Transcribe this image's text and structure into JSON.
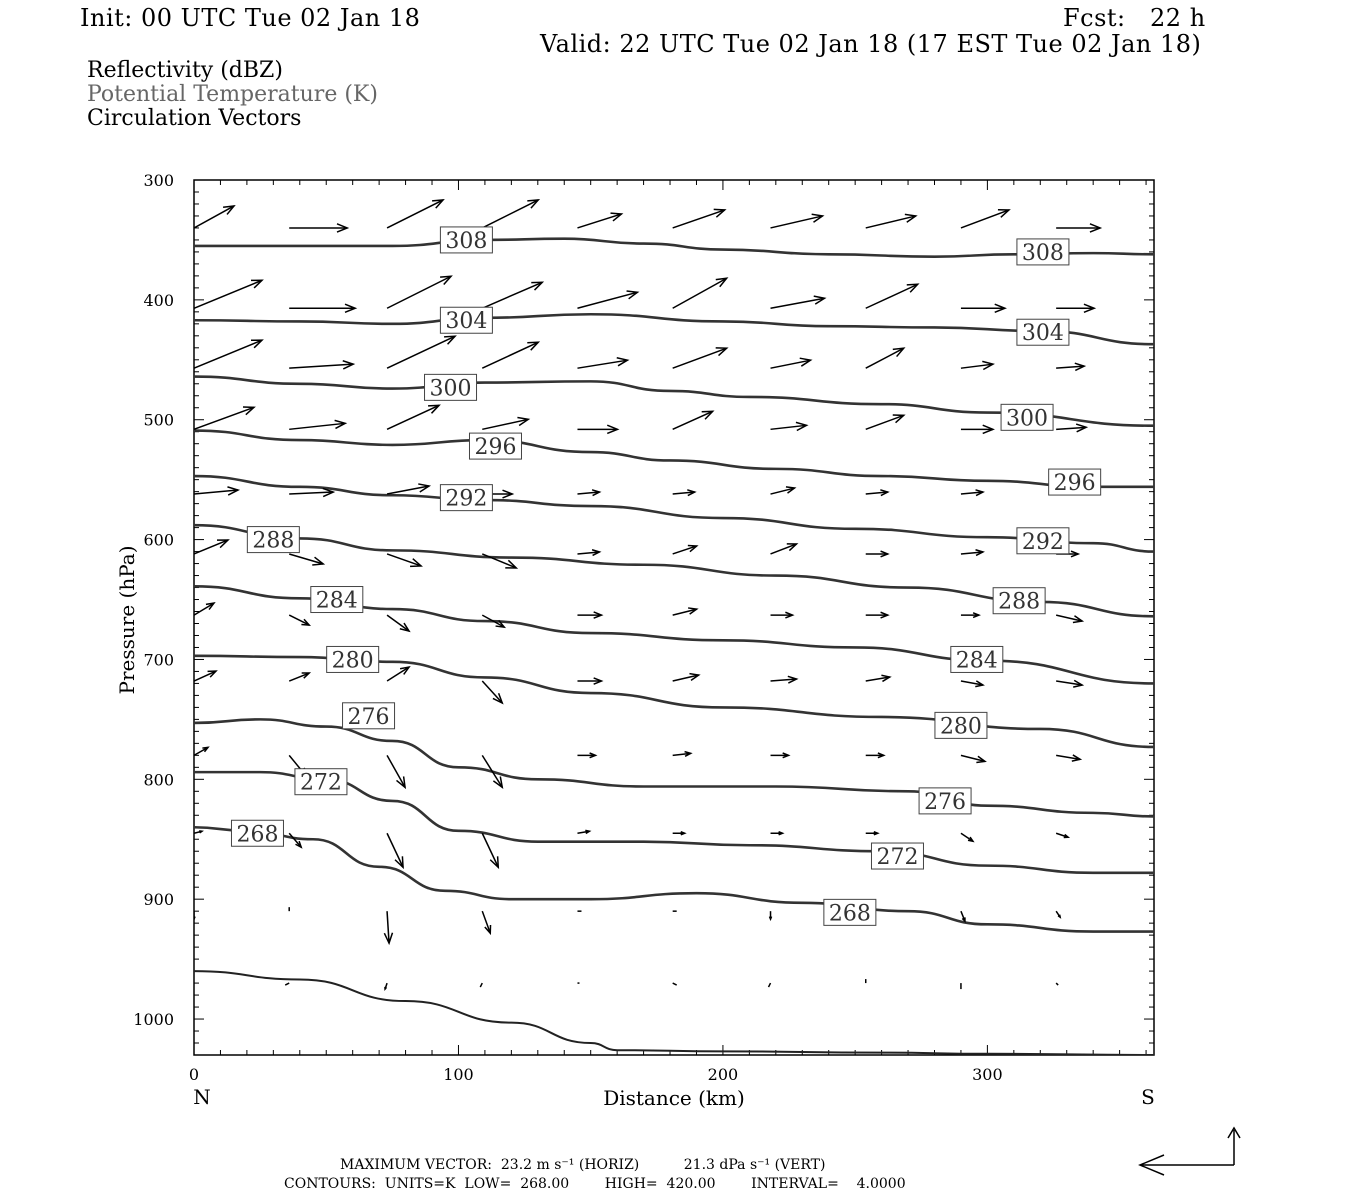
{
  "header": {
    "init": "Init: 00 UTC Tue 02 Jan 18",
    "fcst": "Fcst:   22 h",
    "valid": "Valid: 22 UTC Tue 02 Jan 18 (17 EST Tue 02 Jan 18)"
  },
  "legend": {
    "reflectivity": "Reflectivity (dBZ)",
    "theta": "Potential Temperature (K)",
    "vectors": "Circulation Vectors"
  },
  "footer": {
    "max_vector": "MAXIMUM VECTOR:  23.2 m s⁻¹ (HORIZ)          21.3 dPa s⁻¹ (VERT)",
    "contours": "CONTOURS:  UNITS=K  LOW=  268.00        HIGH=  420.00        INTERVAL=    4.0000"
  },
  "colors": {
    "contour": "#333333",
    "vector": "#000000",
    "label_border": "#444444"
  },
  "chart_data": {
    "type": "line",
    "title": "Potential Temperature (K)",
    "xlabel": "Distance (km)",
    "ylabel": "Pressure (hPa)",
    "xlim": [
      0,
      363
    ],
    "ylim": [
      1030,
      300
    ],
    "x_ticks": [
      "0",
      "100",
      "200",
      "300"
    ],
    "y_ticks": [
      "300",
      "400",
      "500",
      "600",
      "700",
      "800",
      "900",
      "1000"
    ],
    "x_end_labels": {
      "left": "N",
      "right": "S"
    },
    "isentropes": [
      {
        "theta": "308",
        "label_at": [
          [
            103,
            350
          ],
          [
            321,
            360
          ]
        ],
        "points": [
          [
            0,
            355
          ],
          [
            40,
            355
          ],
          [
            75,
            355
          ],
          [
            110,
            350
          ],
          [
            140,
            349
          ],
          [
            170,
            353
          ],
          [
            200,
            358
          ],
          [
            240,
            362
          ],
          [
            280,
            364
          ],
          [
            310,
            362
          ],
          [
            340,
            361
          ],
          [
            363,
            362
          ]
        ]
      },
      {
        "theta": "304",
        "label_at": [
          [
            103,
            417
          ],
          [
            321,
            427
          ]
        ],
        "points": [
          [
            0,
            417
          ],
          [
            40,
            418
          ],
          [
            75,
            420
          ],
          [
            110,
            415
          ],
          [
            150,
            412
          ],
          [
            200,
            418
          ],
          [
            240,
            422
          ],
          [
            280,
            423
          ],
          [
            320,
            426
          ],
          [
            363,
            437
          ]
        ]
      },
      {
        "theta": "300",
        "label_at": [
          [
            97,
            473
          ],
          [
            315,
            498
          ]
        ],
        "points": [
          [
            0,
            464
          ],
          [
            40,
            470
          ],
          [
            75,
            474
          ],
          [
            110,
            469
          ],
          [
            150,
            468
          ],
          [
            180,
            476
          ],
          [
            210,
            481
          ],
          [
            260,
            487
          ],
          [
            300,
            494
          ],
          [
            363,
            505
          ]
        ]
      },
      {
        "theta": "296",
        "label_at": [
          [
            114,
            522
          ],
          [
            333,
            552
          ]
        ],
        "points": [
          [
            0,
            509
          ],
          [
            40,
            517
          ],
          [
            75,
            521
          ],
          [
            110,
            517
          ],
          [
            150,
            527
          ],
          [
            180,
            534
          ],
          [
            220,
            541
          ],
          [
            260,
            547
          ],
          [
            300,
            551
          ],
          [
            340,
            556
          ],
          [
            363,
            556
          ]
        ]
      },
      {
        "theta": "292",
        "label_at": [
          [
            103,
            565
          ],
          [
            321,
            601
          ]
        ],
        "points": [
          [
            0,
            547
          ],
          [
            40,
            556
          ],
          [
            75,
            563
          ],
          [
            110,
            567
          ],
          [
            150,
            572
          ],
          [
            200,
            582
          ],
          [
            250,
            591
          ],
          [
            300,
            598
          ],
          [
            340,
            603
          ],
          [
            363,
            610
          ]
        ]
      },
      {
        "theta": "288",
        "label_at": [
          [
            30,
            600
          ],
          [
            312,
            651
          ]
        ],
        "points": [
          [
            0,
            588
          ],
          [
            40,
            599
          ],
          [
            75,
            609
          ],
          [
            120,
            615
          ],
          [
            170,
            621
          ],
          [
            220,
            630
          ],
          [
            270,
            640
          ],
          [
            320,
            652
          ],
          [
            363,
            664
          ]
        ]
      },
      {
        "theta": "284",
        "label_at": [
          [
            54,
            650
          ],
          [
            296,
            700
          ]
        ],
        "points": [
          [
            0,
            639
          ],
          [
            40,
            649
          ],
          [
            75,
            658
          ],
          [
            110,
            668
          ],
          [
            150,
            678
          ],
          [
            200,
            684
          ],
          [
            250,
            690
          ],
          [
            300,
            701
          ],
          [
            363,
            720
          ]
        ]
      },
      {
        "theta": "280",
        "label_at": [
          [
            60,
            700
          ],
          [
            290,
            755
          ]
        ],
        "points": [
          [
            0,
            697
          ],
          [
            40,
            698
          ],
          [
            75,
            702
          ],
          [
            110,
            715
          ],
          [
            150,
            728
          ],
          [
            200,
            740
          ],
          [
            260,
            748
          ],
          [
            320,
            758
          ],
          [
            363,
            773
          ]
        ]
      },
      {
        "theta": "276",
        "label_at": [
          [
            66,
            747
          ],
          [
            284,
            818
          ]
        ],
        "points": [
          [
            0,
            753
          ],
          [
            25,
            750
          ],
          [
            50,
            756
          ],
          [
            75,
            768
          ],
          [
            100,
            790
          ],
          [
            130,
            800
          ],
          [
            170,
            806
          ],
          [
            220,
            806
          ],
          [
            270,
            810
          ],
          [
            300,
            822
          ],
          [
            340,
            828
          ],
          [
            363,
            831
          ]
        ]
      },
      {
        "theta": "272",
        "label_at": [
          [
            48,
            802
          ],
          [
            266,
            864
          ]
        ],
        "points": [
          [
            0,
            794
          ],
          [
            25,
            794
          ],
          [
            50,
            800
          ],
          [
            75,
            818
          ],
          [
            100,
            843
          ],
          [
            130,
            852
          ],
          [
            170,
            852
          ],
          [
            210,
            855
          ],
          [
            260,
            860
          ],
          [
            300,
            872
          ],
          [
            340,
            878
          ],
          [
            363,
            878
          ]
        ]
      },
      {
        "theta": "268",
        "label_at": [
          [
            24,
            845
          ],
          [
            248,
            911
          ]
        ],
        "points": [
          [
            0,
            840
          ],
          [
            20,
            843
          ],
          [
            45,
            850
          ],
          [
            70,
            873
          ],
          [
            95,
            893
          ],
          [
            120,
            900
          ],
          [
            150,
            900
          ],
          [
            190,
            895
          ],
          [
            230,
            903
          ],
          [
            270,
            910
          ],
          [
            300,
            921
          ],
          [
            340,
            927
          ],
          [
            363,
            927
          ]
        ]
      },
      {
        "theta": "",
        "label_at": [],
        "points": [
          [
            0,
            960
          ],
          [
            40,
            967
          ],
          [
            80,
            985
          ],
          [
            120,
            1003
          ],
          [
            150,
            1020
          ],
          [
            160,
            1026
          ],
          [
            200,
            1027
          ],
          [
            260,
            1028
          ],
          [
            300,
            1029
          ],
          [
            363,
            1030
          ]
        ]
      }
    ],
    "vector_rows_hpa": [
      340,
      407,
      457,
      508,
      562,
      612,
      663,
      718,
      780,
      845,
      910,
      970
    ],
    "vector_cols_km": [
      0,
      36,
      73,
      109,
      145,
      181,
      218,
      254,
      290,
      326
    ],
    "vectors": [
      [
        [
          20,
          -11
        ],
        [
          29,
          0
        ],
        [
          28,
          -14
        ],
        [
          28,
          -14
        ],
        [
          22,
          -7
        ],
        [
          26,
          -9
        ],
        [
          26,
          -6
        ],
        [
          25,
          -6
        ],
        [
          24,
          -9
        ],
        [
          22,
          0
        ]
      ],
      [
        [
          34,
          -14
        ],
        [
          33,
          0
        ],
        [
          32,
          -16
        ],
        [
          30,
          -13
        ],
        [
          30,
          -8
        ],
        [
          27,
          -15
        ],
        [
          27,
          -5
        ],
        [
          26,
          -12
        ],
        [
          22,
          0
        ],
        [
          19,
          0
        ]
      ],
      [
        [
          34,
          -14
        ],
        [
          32,
          -2
        ],
        [
          34,
          -16
        ],
        [
          28,
          -13
        ],
        [
          25,
          -4
        ],
        [
          27,
          -10
        ],
        [
          20,
          -4
        ],
        [
          19,
          -10
        ],
        [
          16,
          -2
        ],
        [
          14,
          -1
        ]
      ],
      [
        [
          30,
          -11
        ],
        [
          28,
          -3
        ],
        [
          26,
          -12
        ],
        [
          23,
          -5
        ],
        [
          20,
          0
        ],
        [
          20,
          -9
        ],
        [
          18,
          -2
        ],
        [
          19,
          -7
        ],
        [
          16,
          0
        ],
        [
          15,
          -1
        ]
      ],
      [
        [
          22,
          -2
        ],
        [
          22,
          -1
        ],
        [
          21,
          -4
        ],
        [
          15,
          0
        ],
        [
          11,
          -1
        ],
        [
          11,
          -1
        ],
        [
          12,
          -3
        ],
        [
          11,
          -1
        ],
        [
          11,
          -1
        ],
        [
          14,
          -4
        ]
      ],
      [
        [
          17,
          -7
        ],
        [
          17,
          5
        ],
        [
          17,
          6
        ],
        [
          17,
          7
        ],
        [
          11,
          -1
        ],
        [
          12,
          -4
        ],
        [
          13,
          -5
        ],
        [
          11,
          0
        ],
        [
          11,
          -1
        ],
        [
          11,
          0
        ]
      ],
      [
        [
          10,
          -6
        ],
        [
          10,
          5
        ],
        [
          11,
          8
        ],
        [
          11,
          6
        ],
        [
          12,
          0
        ],
        [
          12,
          -3
        ],
        [
          11,
          0
        ],
        [
          11,
          0
        ],
        [
          9,
          0
        ],
        [
          13,
          3
        ]
      ],
      [
        [
          11,
          -5
        ],
        [
          10,
          -4
        ],
        [
          11,
          -7
        ],
        [
          10,
          11
        ],
        [
          12,
          0
        ],
        [
          13,
          -3
        ],
        [
          13,
          -1
        ],
        [
          12,
          -2
        ],
        [
          11,
          2
        ],
        [
          13,
          2
        ]
      ],
      [
        [
          7,
          -4
        ],
        [
          9,
          11
        ],
        [
          9,
          16
        ],
        [
          10,
          16
        ],
        [
          9,
          0
        ],
        [
          9,
          -1
        ],
        [
          9,
          0
        ],
        [
          9,
          0
        ],
        [
          12,
          3
        ],
        [
          12,
          2
        ]
      ],
      [
        [
          4,
          -1
        ],
        [
          6,
          7
        ],
        [
          8,
          17
        ],
        [
          8,
          17
        ],
        [
          6,
          -1
        ],
        [
          6,
          0
        ],
        [
          6,
          0
        ],
        [
          6,
          0
        ],
        [
          6,
          4
        ],
        [
          6,
          2
        ]
      ],
      [
        [
          0,
          4
        ],
        [
          0,
          -2
        ],
        [
          1,
          16
        ],
        [
          4,
          11
        ],
        [
          2,
          0
        ],
        [
          2,
          0
        ],
        [
          0,
          4
        ],
        [
          -1,
          2
        ],
        [
          2,
          5
        ],
        [
          2,
          3
        ]
      ],
      [
        [
          0,
          0
        ],
        [
          -2,
          1
        ],
        [
          -1,
          3
        ],
        [
          -1,
          2
        ],
        [
          1,
          0
        ],
        [
          2,
          1
        ],
        [
          -1,
          2
        ],
        [
          0,
          -2
        ],
        [
          0,
          3
        ],
        [
          1,
          1
        ]
      ]
    ]
  }
}
